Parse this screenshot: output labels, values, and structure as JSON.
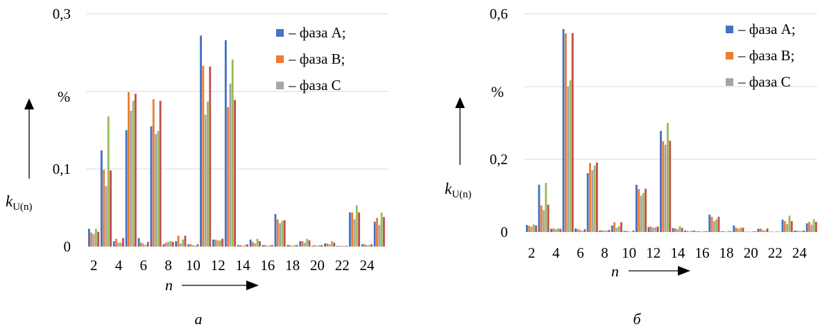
{
  "chart_data": [
    {
      "type": "bar",
      "caption": "а",
      "percent_label": "%",
      "ylabel": "k",
      "ylabel_sub": "U(n)",
      "xlabel": "n",
      "ylim": [
        0,
        0.3
      ],
      "yticks": [
        {
          "v": 0,
          "t": "0"
        },
        {
          "v": 0.1,
          "t": "0,1"
        },
        {
          "v": 0.3,
          "t": "0,3"
        }
      ],
      "grid": true,
      "legend_position": "top-right",
      "categories": [
        "2",
        "3",
        "4",
        "5",
        "6",
        "7",
        "8",
        "9",
        "10",
        "11",
        "12",
        "13",
        "14",
        "15",
        "16",
        "17",
        "18",
        "19",
        "20",
        "21",
        "22",
        "23",
        "24",
        "25"
      ],
      "tick_labels": [
        "2",
        "4",
        "6",
        "8",
        "10",
        "12",
        "14",
        "16",
        "18",
        "20",
        "22",
        "24"
      ],
      "series": [
        {
          "name": "– фаза A;",
          "color": "#4472C4",
          "values": [
            0.023,
            0.124,
            0.007,
            0.15,
            0.011,
            0.155,
            0.003,
            0.007,
            0.003,
            0.272,
            0.009,
            0.266,
            0.002,
            0.009,
            0.002,
            0.042,
            0.002,
            0.007,
            0.001,
            0.004,
            0.001,
            0.044,
            0.003,
            0.032
          ]
        },
        {
          "name": "– фаза B;",
          "color": "#ED7D31",
          "values": [
            0.018,
            0.099,
            0.01,
            0.199,
            0.005,
            0.19,
            0.005,
            0.014,
            0.003,
            0.233,
            0.009,
            0.18,
            0.002,
            0.006,
            0.002,
            0.035,
            0.002,
            0.007,
            0.002,
            0.004,
            0.001,
            0.044,
            0.003,
            0.037
          ]
        },
        {
          "name": "– фаза C",
          "color": "#A5A5A5",
          "values": [
            0.016,
            0.078,
            0.005,
            0.175,
            0.004,
            0.145,
            0.006,
            0.004,
            0.002,
            0.17,
            0.008,
            0.21,
            0.001,
            0.004,
            0.001,
            0.03,
            0.001,
            0.005,
            0.001,
            0.003,
            0.001,
            0.035,
            0.002,
            0.028
          ]
        },
        {
          "name": "",
          "color": "#9BBB59",
          "values": [
            0.023,
            0.168,
            0.005,
            0.188,
            0.002,
            0.149,
            0.007,
            0.009,
            0.001,
            0.187,
            0.008,
            0.241,
            0.002,
            0.01,
            0.002,
            0.033,
            0.002,
            0.01,
            0.002,
            0.007,
            0.001,
            0.053,
            0.002,
            0.044
          ]
        },
        {
          "name": "",
          "color": "#C0504D",
          "values": [
            0.019,
            0.098,
            0.011,
            0.197,
            0.006,
            0.188,
            0.006,
            0.014,
            0.003,
            0.232,
            0.01,
            0.189,
            0.003,
            0.007,
            0.002,
            0.034,
            0.002,
            0.008,
            0.002,
            0.005,
            0.001,
            0.044,
            0.003,
            0.038
          ]
        }
      ]
    },
    {
      "type": "bar",
      "caption": "б",
      "percent_label": "%",
      "ylabel": "k",
      "ylabel_sub": "U(n)",
      "xlabel": "n",
      "ylim": [
        0,
        0.6
      ],
      "yticks": [
        {
          "v": 0,
          "t": "0"
        },
        {
          "v": 0.2,
          "t": "0,2"
        },
        {
          "v": 0.6,
          "t": "0,6"
        }
      ],
      "grid": true,
      "legend_position": "top-right",
      "categories": [
        "2",
        "3",
        "4",
        "5",
        "6",
        "7",
        "8",
        "9",
        "10",
        "11",
        "12",
        "13",
        "14",
        "15",
        "16",
        "17",
        "18",
        "19",
        "20",
        "21",
        "22",
        "23",
        "24",
        "25"
      ],
      "tick_labels": [
        "2",
        "4",
        "6",
        "8",
        "10",
        "12",
        "14",
        "16",
        "18",
        "20",
        "22",
        "24"
      ],
      "series": [
        {
          "name": "– фаза A;",
          "color": "#4472C4",
          "values": [
            0.019,
            0.13,
            0.009,
            0.558,
            0.01,
            0.162,
            0.004,
            0.018,
            0.003,
            0.13,
            0.014,
            0.278,
            0.011,
            0.004,
            0.002,
            0.048,
            0.002,
            0.018,
            0.001,
            0.009,
            0.001,
            0.034,
            0.004,
            0.024
          ]
        },
        {
          "name": "– фаза B;",
          "color": "#ED7D31",
          "values": [
            0.017,
            0.073,
            0.01,
            0.546,
            0.008,
            0.19,
            0.005,
            0.027,
            0.003,
            0.118,
            0.015,
            0.25,
            0.01,
            0.003,
            0.002,
            0.042,
            0.002,
            0.012,
            0.001,
            0.01,
            0.001,
            0.03,
            0.004,
            0.028
          ]
        },
        {
          "name": "– фаза C",
          "color": "#A5A5A5",
          "values": [
            0.015,
            0.06,
            0.008,
            0.4,
            0.006,
            0.17,
            0.004,
            0.012,
            0.002,
            0.1,
            0.012,
            0.24,
            0.008,
            0.002,
            0.001,
            0.03,
            0.001,
            0.009,
            0.001,
            0.006,
            0.001,
            0.022,
            0.003,
            0.02
          ]
        },
        {
          "name": "",
          "color": "#9BBB59",
          "values": [
            0.021,
            0.135,
            0.01,
            0.417,
            0.003,
            0.183,
            0.004,
            0.016,
            0.001,
            0.108,
            0.013,
            0.3,
            0.016,
            0.004,
            0.003,
            0.035,
            0.003,
            0.012,
            0.002,
            0.004,
            0.002,
            0.045,
            0.003,
            0.035
          ]
        },
        {
          "name": "",
          "color": "#C0504D",
          "values": [
            0.018,
            0.075,
            0.009,
            0.547,
            0.008,
            0.191,
            0.006,
            0.027,
            0.004,
            0.119,
            0.015,
            0.251,
            0.011,
            0.004,
            0.002,
            0.042,
            0.002,
            0.012,
            0.002,
            0.01,
            0.001,
            0.03,
            0.004,
            0.028
          ]
        }
      ]
    }
  ]
}
